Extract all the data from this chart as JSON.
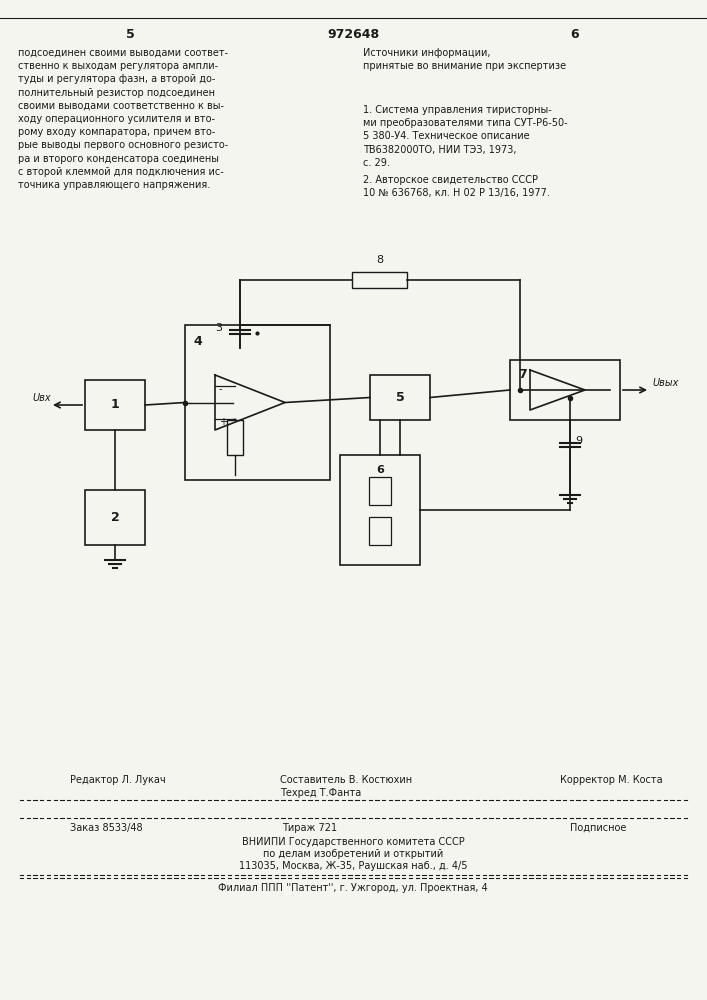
{
  "page_number_left": "5",
  "patent_number": "972648",
  "page_number_right": "6",
  "text_left": "подсоединен своими выводами соответ-\nственно к выходам регулятора ампли-\nтуды и регулятора фазн, а второй до-\nполнительный резистор подсоединен\nсвоими выводами соответственно к вы-\nходу операционного усилителя и вто-\nрому входу компаратора, причем вто-\nрые выводы первого основного резисто-\nра и второго конденсатора соединены\nс второй клеммой для подключения ис-\nточника управляющего напряжения.",
  "text_right_title": "Источники информации,\nпринятые во внимание при экспертизе",
  "text_right_1": "1. Система управления тиристорны-\nми преобразователями типа СУТ-Р6-50-\n5 380-У4. Техническое описание\nТВ6382000ТО, НИИ ТЭЗ, 1973,\nс. 29.",
  "text_right_2": "2. Авторское свидетельство СССР\n10 № 636768, кл. Н 02 Р 13/16, 1977.",
  "footer_line1_left": "Редактор Л. Лукач",
  "footer_line1_center": "Составитель В. Костюхин\nТехред Т.Фанта",
  "footer_line1_right": "Корректор М. Коста",
  "footer_line2_left": "Заказ 8533/48",
  "footer_line2_center": "Тираж 721",
  "footer_line2_right": "Подписное",
  "footer_line3": "ВНИИПИ Государственного комитета СССР",
  "footer_line4": "по делам изобретений и открытий",
  "footer_line5": "113035, Москва, Ж-35, Раушская наб., д. 4/5",
  "footer_line6": "Филиал ППП ''Патент'', г. Ужгород, ул. Проектная, 4",
  "bg_color": "#f5f5f0",
  "text_color": "#1a1a1a",
  "line_color": "#1a1a1a"
}
